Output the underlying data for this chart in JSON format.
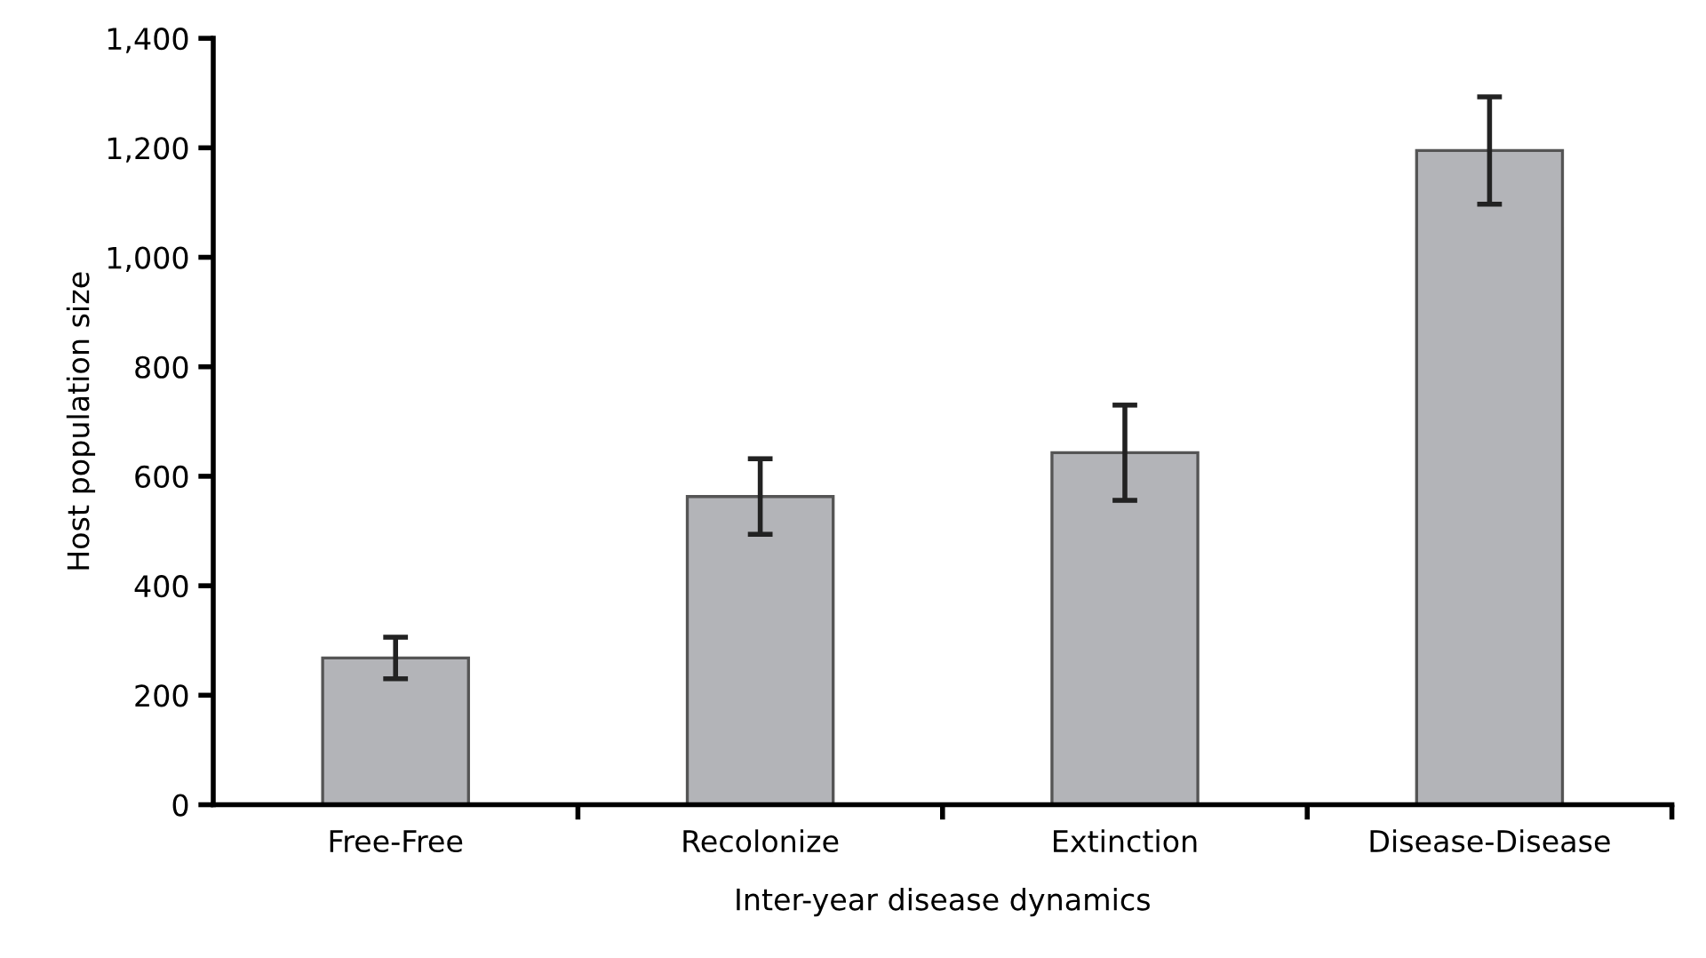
{
  "chart_data": {
    "type": "bar",
    "xlabel": "Inter-year disease dynamics",
    "ylabel": "Host population size",
    "categories": [
      "Free-Free",
      "Recolonize",
      "Extinction",
      "Disease-Disease"
    ],
    "values": [
      268,
      563,
      643,
      1195
    ],
    "errors": [
      38,
      69,
      87,
      98
    ],
    "color": "#b3b4b8",
    "ylim": [
      0,
      1400
    ],
    "yticks": [
      0,
      {
        "value": 200,
        "label": "200"
      },
      {
        "value": 400,
        "label": "400"
      },
      {
        "value": 600,
        "label": "600"
      },
      {
        "value": 800,
        "label": "800"
      },
      {
        "value": 1000,
        "label": "1,000"
      },
      {
        "value": 1200,
        "label": "1,200"
      },
      {
        "value": 1400,
        "label": "1,400"
      }
    ],
    "grid": false
  }
}
